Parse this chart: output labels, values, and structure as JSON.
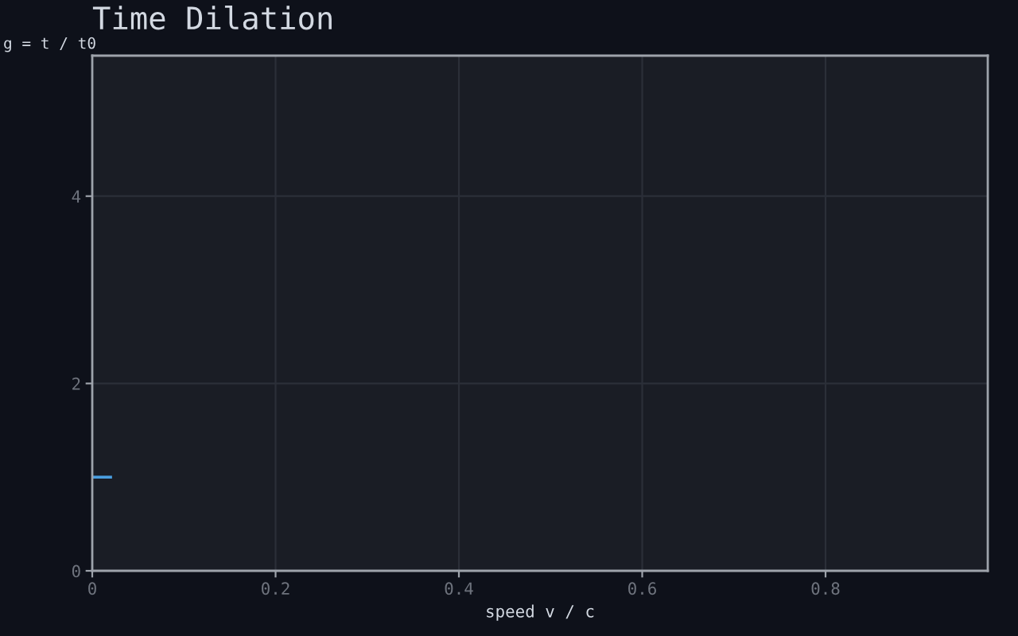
{
  "chart_data": {
    "type": "line",
    "title": "Time Dilation",
    "xlabel": "speed v / c",
    "ylabel": "g = t / t0",
    "series": [
      {
        "color": "#4a9ee0",
        "x": [
          0,
          0.02
        ],
        "values": [
          1,
          1
        ]
      }
    ],
    "xlim": [
      0,
      0.977
    ],
    "xticks": [
      0,
      0.2,
      0.4,
      0.6,
      0.8
    ],
    "ylim": [
      0,
      5.5
    ],
    "yticks": [
      0,
      2,
      4
    ],
    "grid": true,
    "marker": "none",
    "line_style": "solid"
  }
}
